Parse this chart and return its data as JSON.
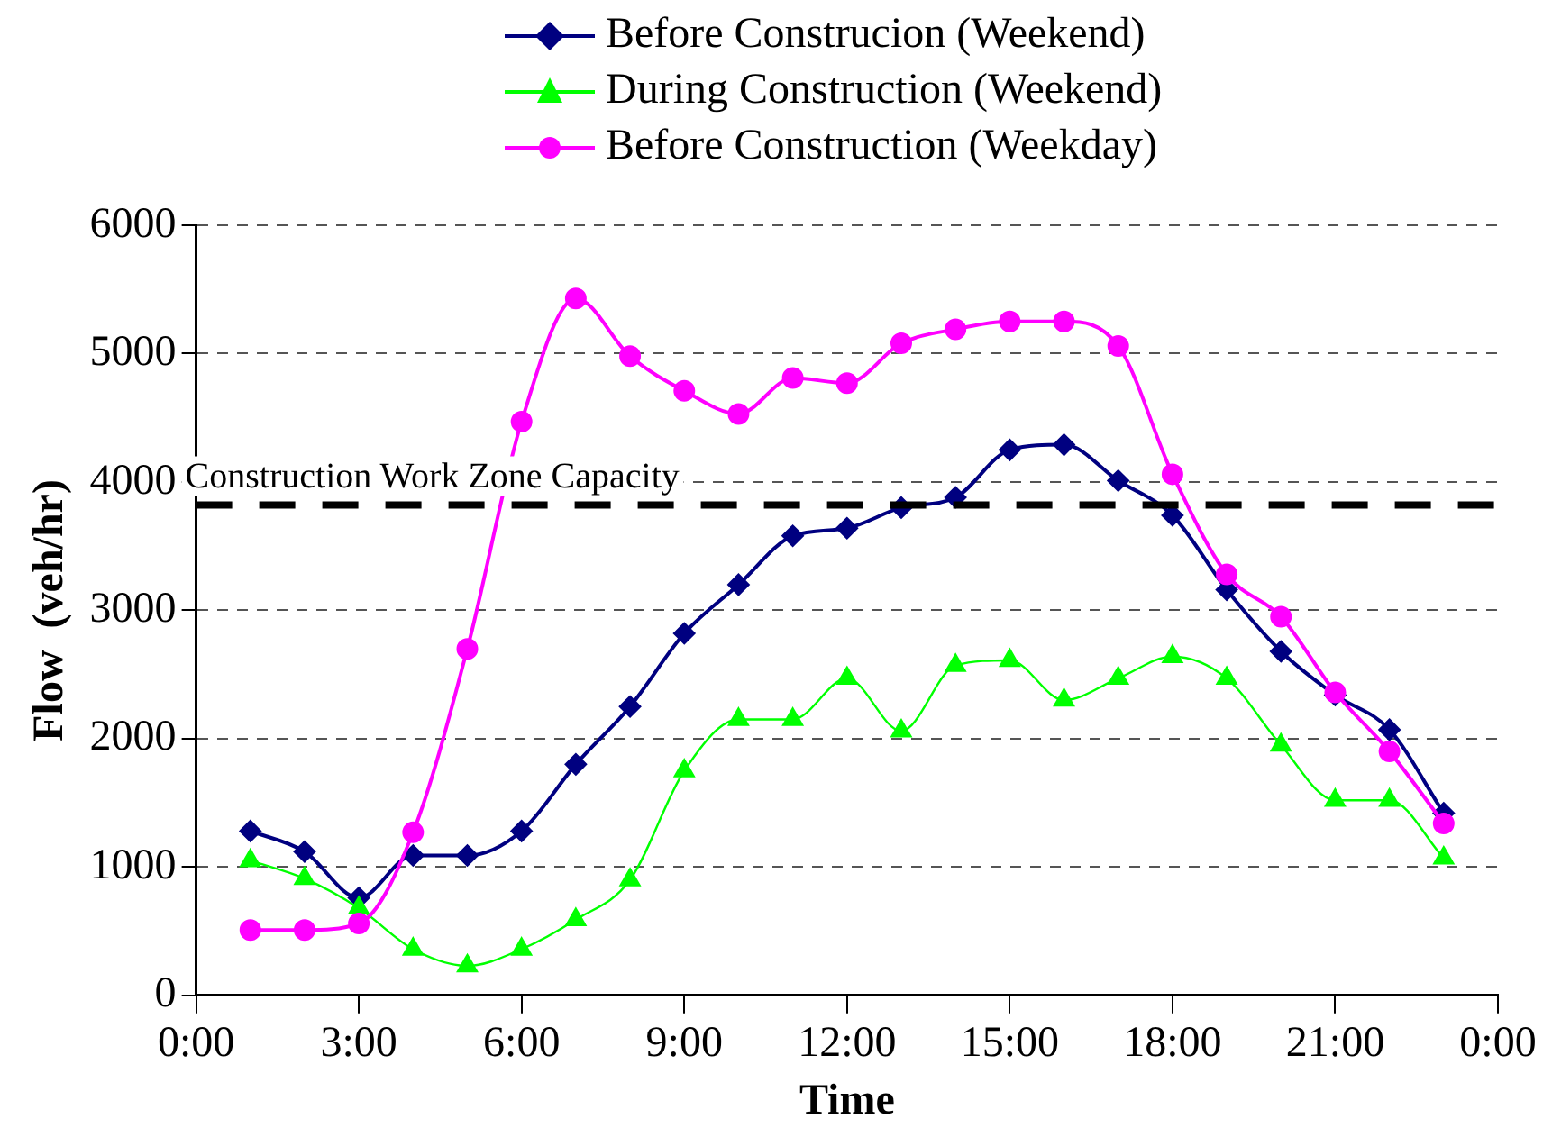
{
  "chart_data": {
    "type": "line",
    "xlabel": "Time",
    "ylabel": "Flow  (veh/hr)",
    "x": [
      1,
      2,
      3,
      4,
      5,
      6,
      7,
      8,
      9,
      10,
      11,
      12,
      13,
      14,
      15,
      16,
      17,
      18,
      19,
      20,
      21,
      22,
      23
    ],
    "series": [
      {
        "name": "Before Construcion (Weekend)",
        "color": "#000080",
        "marker": "diamond",
        "values": [
          1280,
          1120,
          760,
          1090,
          1090,
          1280,
          1800,
          2250,
          2820,
          3200,
          3580,
          3640,
          3800,
          3880,
          4250,
          4290,
          4010,
          3740,
          3160,
          2680,
          2340,
          2070,
          1420
        ]
      },
      {
        "name": "During Construction (Weekend)",
        "color": "#00ff00",
        "marker": "triangle",
        "values": [
          1050,
          910,
          680,
          360,
          230,
          360,
          590,
          900,
          1750,
          2150,
          2150,
          2470,
          2060,
          2570,
          2610,
          2300,
          2470,
          2640,
          2470,
          1950,
          1520,
          1520,
          1070
        ]
      },
      {
        "name": "Before Construction (Weekday)",
        "color": "#ff00ff",
        "marker": "circle",
        "values": [
          510,
          510,
          560,
          1270,
          2700,
          4470,
          5430,
          4980,
          4710,
          4530,
          4810,
          4770,
          5080,
          5190,
          5250,
          5250,
          5060,
          4060,
          3280,
          2950,
          2360,
          1900,
          1340
        ]
      }
    ],
    "xlim": [
      0,
      24
    ],
    "xticks": [
      {
        "value": 0,
        "label": "0:00"
      },
      {
        "value": 3,
        "label": "3:00"
      },
      {
        "value": 6,
        "label": "6:00"
      },
      {
        "value": 9,
        "label": "9:00"
      },
      {
        "value": 12,
        "label": "12:00"
      },
      {
        "value": 15,
        "label": "15:00"
      },
      {
        "value": 18,
        "label": "18:00"
      },
      {
        "value": 21,
        "label": "21:00"
      },
      {
        "value": 24,
        "label": "0:00"
      }
    ],
    "ylim": [
      0,
      6000
    ],
    "yticks": [
      0,
      1000,
      2000,
      3000,
      4000,
      5000,
      6000
    ],
    "grid": "y",
    "legend": "top",
    "ref_lines": [
      {
        "axis": "y",
        "value": 3820,
        "label": "Construction Work Zone Capacity",
        "color": "#000000",
        "line_style": "dashed"
      }
    ]
  }
}
